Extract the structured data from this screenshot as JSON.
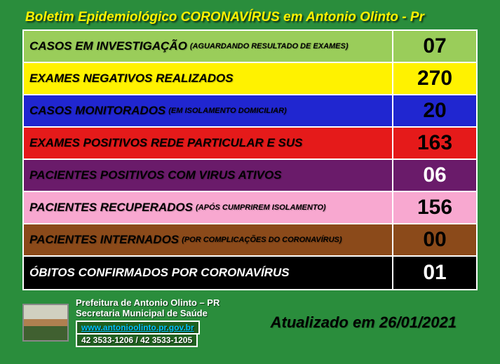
{
  "title": "Boletim Epidemiológico CORONAVÍRUS em Antonio Olinto - Pr",
  "rows": [
    {
      "label": "CASOS EM INVESTIGAÇÃO",
      "sub": "(AGUARDANDO RESULTADO DE EXAMES)",
      "value": "07",
      "bg": "#9acd5a",
      "labelColor": "#000000",
      "valueColor": "#000000"
    },
    {
      "label": "EXAMES NEGATIVOS REALIZADOS",
      "sub": "",
      "value": "270",
      "bg": "#fff200",
      "labelColor": "#000000",
      "valueColor": "#000000"
    },
    {
      "label": "CASOS MONITORADOS",
      "sub": "(EM ISOLAMENTO DOMICILIAR)",
      "value": "20",
      "bg": "#2026d0",
      "labelColor": "#000000",
      "valueColor": "#000000"
    },
    {
      "label": "EXAMES POSITIVOS REDE PARTICULAR E SUS",
      "sub": "",
      "value": "163",
      "bg": "#e51a1a",
      "labelColor": "#000000",
      "valueColor": "#000000"
    },
    {
      "label": "PACIENTES POSITIVOS COM VIRUS ATIVOS",
      "sub": "",
      "value": "06",
      "bg": "#6a1b6a",
      "labelColor": "#000000",
      "valueColor": "#ffffff"
    },
    {
      "label": "PACIENTES RECUPERADOS",
      "sub": "(APÓS CUMPRIREM ISOLAMENTO)",
      "value": "156",
      "bg": "#f8a8d0",
      "labelColor": "#000000",
      "valueColor": "#000000"
    },
    {
      "label": "PACIENTES INTERNADOS",
      "sub": "(POR COMPLICAÇÕES DO CORONAVÍRUS)",
      "value": "00",
      "bg": "#8b4a1a",
      "labelColor": "#000000",
      "valueColor": "#000000"
    },
    {
      "label": "ÓBITOS CONFIRMADOS POR CORONAVÍRUS",
      "sub": "",
      "value": "01",
      "bg": "#000000",
      "labelColor": "#ffffff",
      "valueColor": "#ffffff"
    }
  ],
  "footer": {
    "line1": "Prefeitura de Antonio Olinto – PR",
    "line2": "Secretaria Municipal de Saúde",
    "url": "www.antonioolinto.pr.gov.br",
    "phones": "42 3533-1206 / 42 3533-1205"
  },
  "updated": "Atualizado em 26/01/2021"
}
